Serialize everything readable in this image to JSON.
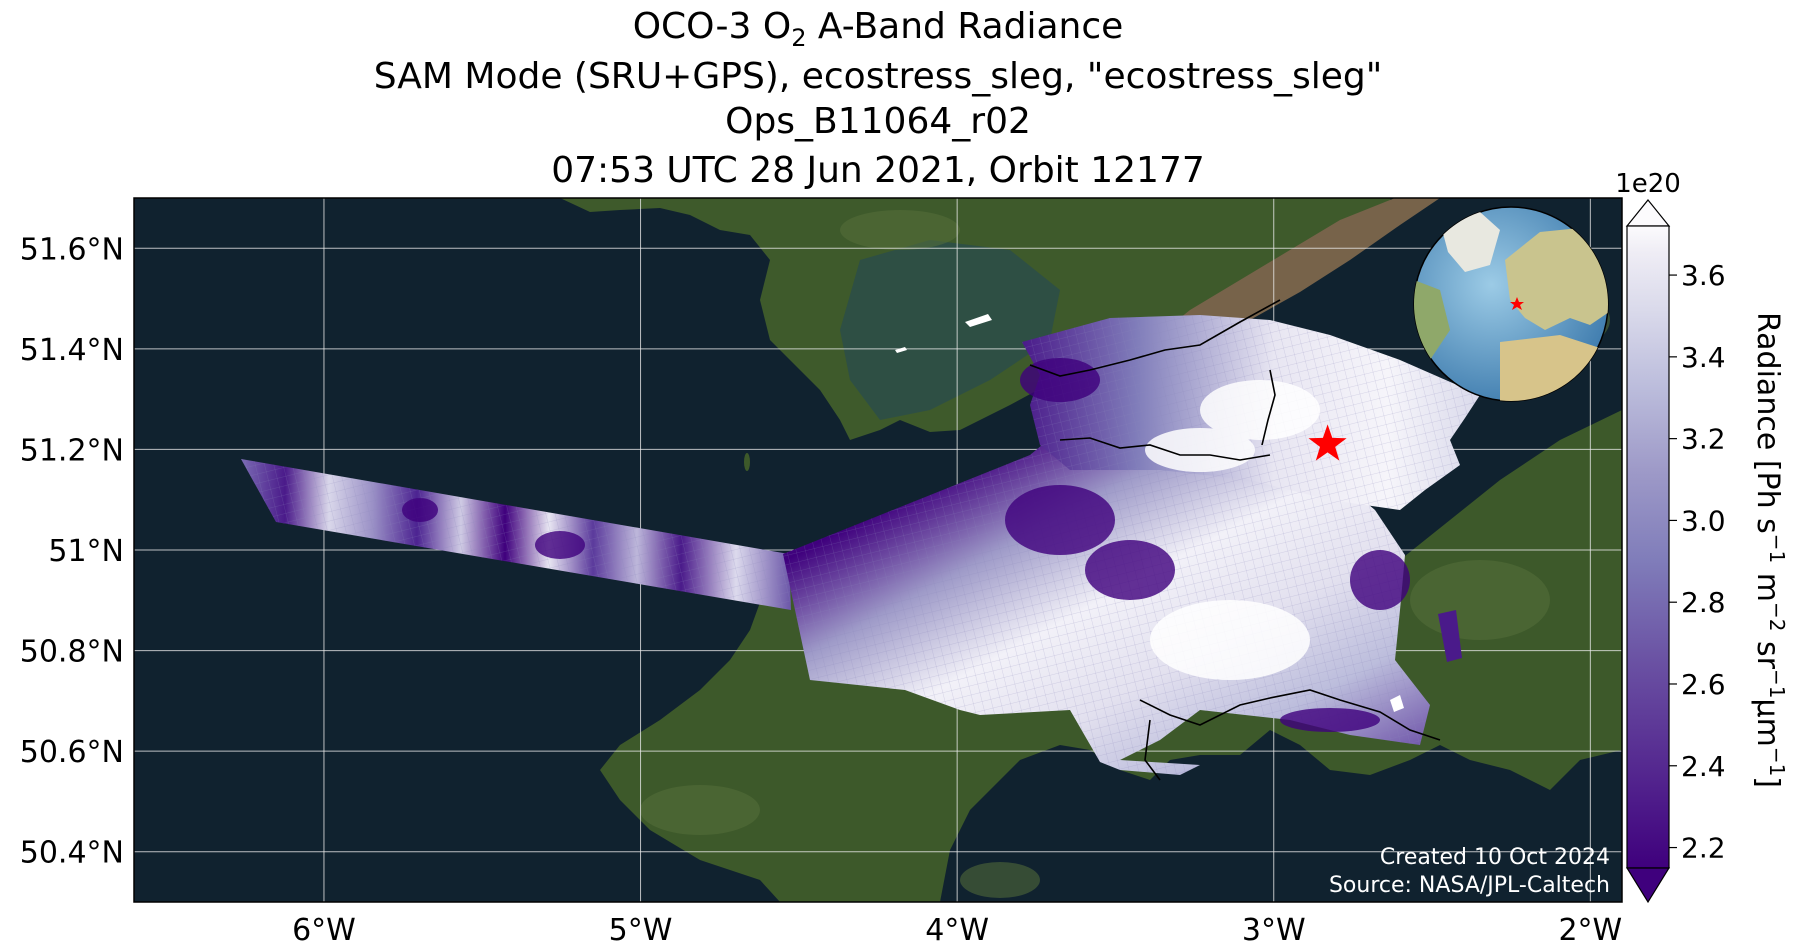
{
  "title": {
    "line1_prefix": "OCO-3 O",
    "line1_sub": "2",
    "line1_suffix": " A-Band Radiance",
    "line2": "SAM Mode (SRU+GPS), ecostress_sleg, \"ecostress_sleg\"",
    "line3": "Ops_B11064_r02",
    "line4": "07:53 UTC 28 Jun 2021, Orbit 12177"
  },
  "map": {
    "lon_range": [
      -6.6,
      -1.9
    ],
    "lat_range": [
      50.3,
      51.7
    ],
    "gridlines": true,
    "x_ticks": [
      {
        "value": -6,
        "label": "6°W"
      },
      {
        "value": -5,
        "label": "5°W"
      },
      {
        "value": -4,
        "label": "4°W"
      },
      {
        "value": -3,
        "label": "3°W"
      },
      {
        "value": -2,
        "label": "2°W"
      }
    ],
    "y_ticks": [
      {
        "value": 51.6,
        "label": "51.6°N"
      },
      {
        "value": 51.4,
        "label": "51.4°N"
      },
      {
        "value": 51.2,
        "label": "51.2°N"
      },
      {
        "value": 51.0,
        "label": "51°N"
      },
      {
        "value": 50.8,
        "label": "50.8°N"
      },
      {
        "value": 50.6,
        "label": "50.6°N"
      },
      {
        "value": 50.4,
        "label": "50.4°N"
      }
    ],
    "target_marker": {
      "lon": -2.83,
      "lat": 51.21,
      "symbol": "star",
      "color": "#ff0000"
    },
    "inset": "globe-locator",
    "colors": {
      "sea": "#0f2333",
      "land": "#3d5a2a",
      "estuary": "#7a6a52",
      "grid": "#e8e8e8",
      "marker": "#ff0000"
    }
  },
  "colorbar": {
    "label_prefix": "Radiance [Ph s",
    "label_full": "Radiance [Ph s⁻¹ m⁻² sr⁻¹μm⁻¹]",
    "multiplier": "1e20",
    "range": [
      2.15,
      3.72
    ],
    "ticks": [
      {
        "value": 2.2,
        "label": "2.2"
      },
      {
        "value": 2.4,
        "label": "2.4"
      },
      {
        "value": 2.6,
        "label": "2.6"
      },
      {
        "value": 2.8,
        "label": "2.8"
      },
      {
        "value": 3.0,
        "label": "3.0"
      },
      {
        "value": 3.2,
        "label": "3.2"
      },
      {
        "value": 3.4,
        "label": "3.4"
      },
      {
        "value": 3.6,
        "label": "3.6"
      }
    ],
    "colormap": "Purples_r",
    "extend": "both"
  },
  "credits": {
    "created": "Created 10 Oct 2024",
    "source": "Source: NASA/JPL-Caltech"
  }
}
